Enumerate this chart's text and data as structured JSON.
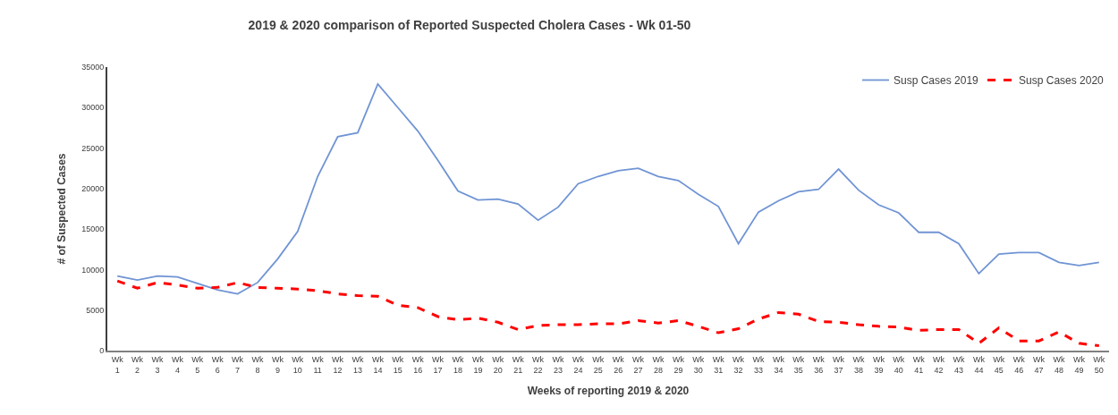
{
  "chart_data": {
    "type": "line",
    "title": "2019 & 2020 comparison of Reported Suspected Cholera Cases - Wk 01-50",
    "xlabel": "Weeks of reporting 2019 & 2020",
    "ylabel": "# of Suspected Cases",
    "categories": [
      "Wk 1",
      "Wk 2",
      "Wk 3",
      "Wk 4",
      "Wk 5",
      "Wk 6",
      "Wk 7",
      "Wk 8",
      "Wk 9",
      "Wk 10",
      "Wk 11",
      "Wk 12",
      "Wk 13",
      "Wk 14",
      "Wk 15",
      "Wk 16",
      "Wk 17",
      "Wk 18",
      "Wk 19",
      "Wk 20",
      "Wk 21",
      "Wk 22",
      "Wk 23",
      "Wk 24",
      "Wk 25",
      "Wk 26",
      "Wk 27",
      "Wk 28",
      "Wk 29",
      "Wk 30",
      "Wk 31",
      "Wk 32",
      "Wk 33",
      "Wk 34",
      "Wk 35",
      "Wk 36",
      "Wk 37",
      "Wk 38",
      "Wk 39",
      "Wk 40",
      "Wk 41",
      "Wk 42",
      "Wk 43",
      "Wk 44",
      "Wk 45",
      "Wk 46",
      "Wk 47",
      "Wk 48",
      "Wk 49",
      "Wk 50"
    ],
    "series": [
      {
        "name": "Susp Cases 2019",
        "color": "#7094d4",
        "line_style": "solid",
        "values": [
          9200,
          8700,
          9200,
          9100,
          8300,
          7500,
          7000,
          8400,
          11300,
          14700,
          21500,
          26400,
          26900,
          32900,
          30000,
          27100,
          23500,
          19700,
          18600,
          18700,
          18100,
          16100,
          17700,
          20600,
          21500,
          22200,
          22500,
          21500,
          21000,
          19300,
          17800,
          13200,
          17100,
          18500,
          19600,
          19900,
          22400,
          19800,
          18000,
          17000,
          14600,
          14600,
          13200,
          9500,
          11900,
          12100,
          12100,
          10900,
          10500,
          10900
        ]
      },
      {
        "name": "Susp Cases 2020",
        "color": "#ff0000",
        "line_style": "dashed",
        "values": [
          8600,
          7700,
          8400,
          8100,
          7700,
          7800,
          8400,
          7800,
          7700,
          7600,
          7400,
          7000,
          6800,
          6700,
          5600,
          5300,
          4200,
          3800,
          4000,
          3500,
          2600,
          3100,
          3200,
          3200,
          3300,
          3300,
          3700,
          3400,
          3700,
          3000,
          2200,
          2700,
          3900,
          4700,
          4500,
          3600,
          3500,
          3200,
          3000,
          2900,
          2500,
          2600,
          2600,
          900,
          2800,
          1200,
          1200,
          2300,
          900,
          600
        ]
      }
    ],
    "ylim": [
      0,
      35000
    ],
    "yticks": [
      0,
      5000,
      10000,
      15000,
      20000,
      25000,
      30000,
      35000
    ],
    "legend": "top right",
    "marker": "none"
  }
}
